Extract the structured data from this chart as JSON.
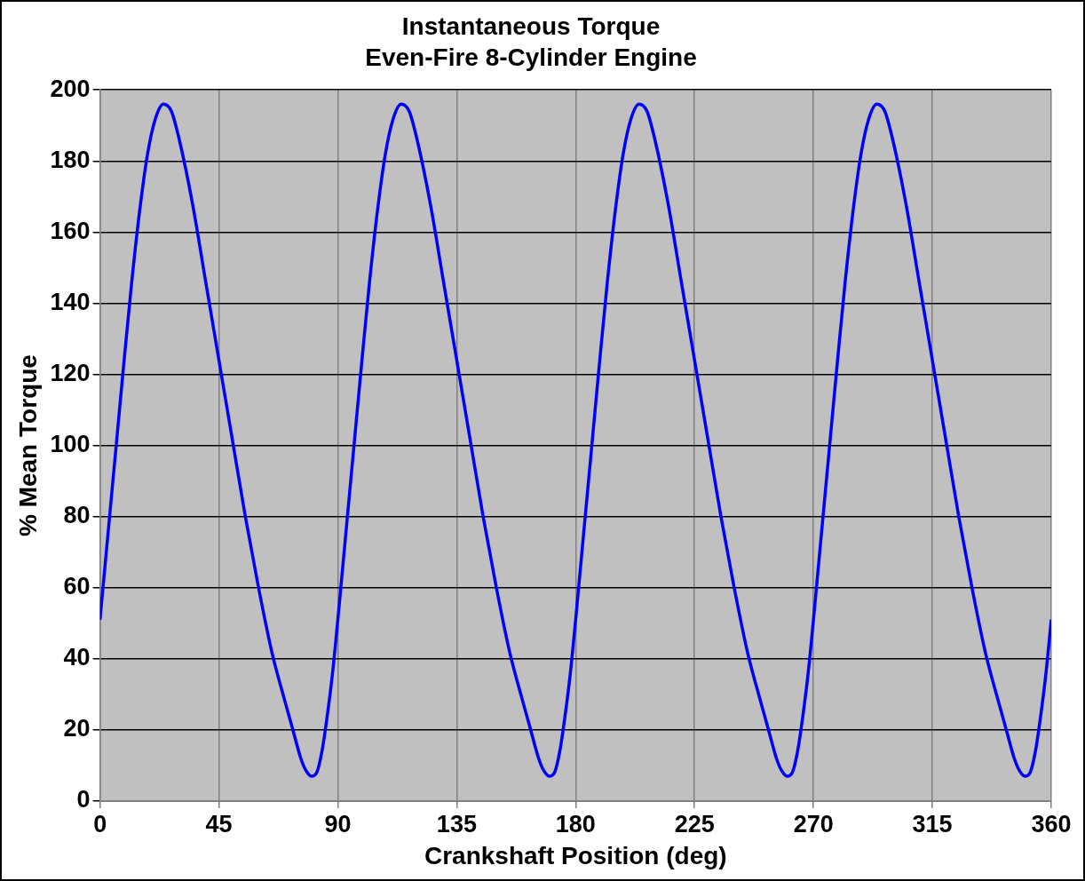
{
  "chart_data": {
    "type": "line",
    "title": "Instantaneous Torque",
    "subtitle": "Even-Fire 8-Cylinder Engine",
    "xlabel": "Crankshaft Position (deg)",
    "ylabel": "% Mean Torque",
    "x": [
      0,
      3,
      6,
      9,
      12,
      15,
      18,
      21,
      24,
      27,
      30,
      35,
      40,
      45,
      50,
      55,
      60,
      65,
      70,
      73,
      76,
      78,
      80,
      82,
      84,
      86,
      88,
      90,
      93,
      96,
      99,
      102,
      105,
      108,
      111,
      114,
      117,
      120,
      125,
      130,
      135,
      140,
      145,
      150,
      155,
      160,
      163,
      166,
      168,
      170,
      172,
      174,
      176,
      178,
      180,
      183,
      186,
      189,
      192,
      195,
      198,
      201,
      204,
      207,
      210,
      215,
      220,
      225,
      230,
      235,
      240,
      245,
      250,
      253,
      256,
      258,
      260,
      262,
      264,
      266,
      268,
      270,
      273,
      276,
      279,
      282,
      285,
      288,
      291,
      294,
      297,
      300,
      305,
      310,
      315,
      320,
      325,
      330,
      335,
      340,
      343,
      346,
      348,
      350,
      352,
      354,
      356,
      358,
      360
    ],
    "series": [
      {
        "color": "#0000ff",
        "values": [
          51,
          75,
          99,
          123,
          146,
          166,
          182,
          192,
          196,
          194,
          186,
          168,
          146,
          124,
          102,
          80,
          60,
          42,
          28,
          20,
          12,
          8.5,
          7,
          8,
          14,
          24,
          36,
          51,
          75,
          99,
          123,
          146,
          166,
          182,
          192,
          196,
          194,
          186,
          168,
          146,
          124,
          102,
          80,
          60,
          42,
          28,
          20,
          12,
          8.5,
          7,
          8,
          14,
          24,
          36,
          51,
          75,
          99,
          123,
          146,
          166,
          182,
          192,
          196,
          194,
          186,
          168,
          146,
          124,
          102,
          80,
          60,
          42,
          28,
          20,
          12,
          8.5,
          7,
          8,
          14,
          24,
          36,
          51,
          75,
          99,
          123,
          146,
          166,
          182,
          192,
          196,
          194,
          186,
          168,
          146,
          124,
          102,
          80,
          60,
          42,
          28,
          20,
          12,
          8.5,
          7,
          8,
          14,
          24,
          36,
          51
        ]
      }
    ],
    "xlim": [
      0,
      360
    ],
    "xticks": [
      0,
      45,
      90,
      135,
      180,
      225,
      270,
      315,
      360
    ],
    "ylim": [
      0,
      200
    ],
    "yticks": [
      0,
      20,
      40,
      60,
      80,
      100,
      120,
      140,
      160,
      180,
      200
    ],
    "grid": true,
    "legend": false,
    "marker": "none",
    "line_style": "solid"
  }
}
